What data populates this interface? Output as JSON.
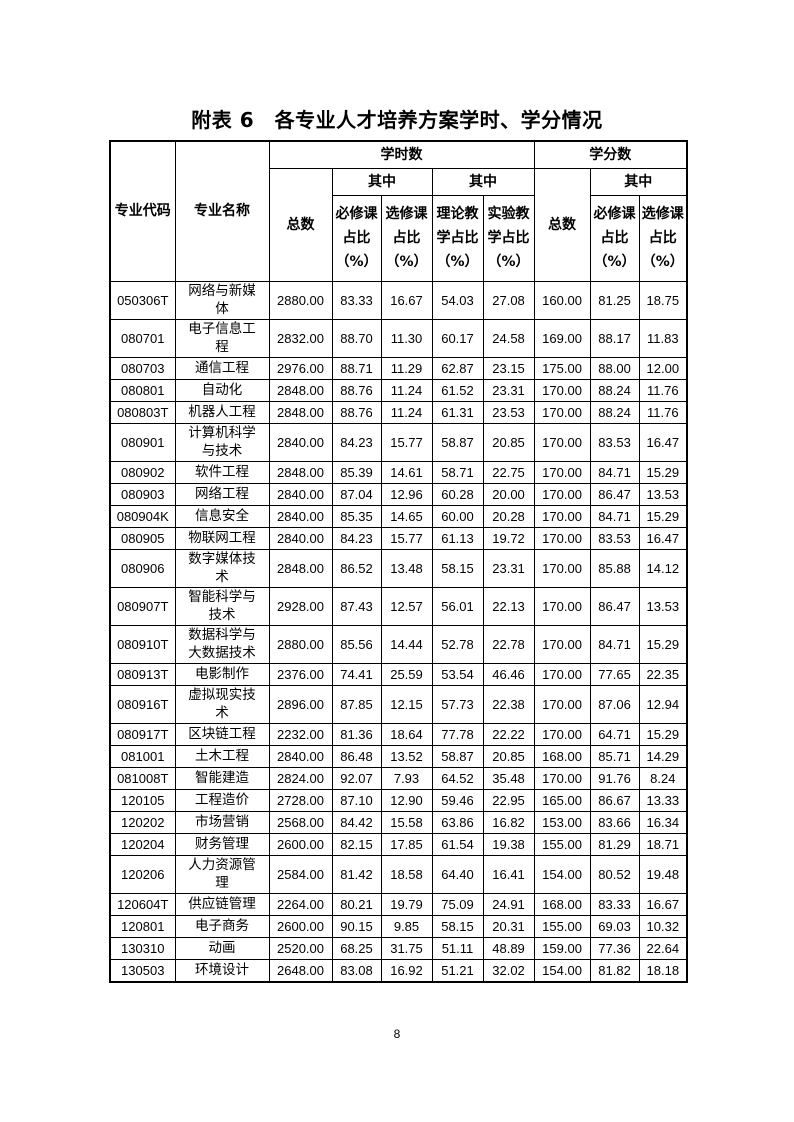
{
  "title": "附表 6　各专业人才培养方案学时、学分情况",
  "page_number": "8",
  "table": {
    "headers": {
      "code": "专业代码",
      "name": "专业名称",
      "hours_group": "学时数",
      "credits_group": "学分数",
      "of_which": "其中",
      "total": "总数",
      "required_pct": "必修课占比（%）",
      "elective_pct": "选修课占比（%）",
      "theory_pct": "理论教学占比（%）",
      "experiment_pct": "实验教学占比（%）"
    },
    "rows": [
      {
        "code": "050306T",
        "name": "网络与新媒体",
        "h_total": "2880.00",
        "h_req": "83.33",
        "h_ele": "16.67",
        "h_theory": "54.03",
        "h_exp": "27.08",
        "c_total": "160.00",
        "c_req": "81.25",
        "c_ele": "18.75"
      },
      {
        "code": "080701",
        "name": "电子信息工程",
        "h_total": "2832.00",
        "h_req": "88.70",
        "h_ele": "11.30",
        "h_theory": "60.17",
        "h_exp": "24.58",
        "c_total": "169.00",
        "c_req": "88.17",
        "c_ele": "11.83"
      },
      {
        "code": "080703",
        "name": "通信工程",
        "h_total": "2976.00",
        "h_req": "88.71",
        "h_ele": "11.29",
        "h_theory": "62.87",
        "h_exp": "23.15",
        "c_total": "175.00",
        "c_req": "88.00",
        "c_ele": "12.00"
      },
      {
        "code": "080801",
        "name": "自动化",
        "h_total": "2848.00",
        "h_req": "88.76",
        "h_ele": "11.24",
        "h_theory": "61.52",
        "h_exp": "23.31",
        "c_total": "170.00",
        "c_req": "88.24",
        "c_ele": "11.76"
      },
      {
        "code": "080803T",
        "name": "机器人工程",
        "h_total": "2848.00",
        "h_req": "88.76",
        "h_ele": "11.24",
        "h_theory": "61.31",
        "h_exp": "23.53",
        "c_total": "170.00",
        "c_req": "88.24",
        "c_ele": "11.76"
      },
      {
        "code": "080901",
        "name": "计算机科学与技术",
        "h_total": "2840.00",
        "h_req": "84.23",
        "h_ele": "15.77",
        "h_theory": "58.87",
        "h_exp": "20.85",
        "c_total": "170.00",
        "c_req": "83.53",
        "c_ele": "16.47"
      },
      {
        "code": "080902",
        "name": "软件工程",
        "h_total": "2848.00",
        "h_req": "85.39",
        "h_ele": "14.61",
        "h_theory": "58.71",
        "h_exp": "22.75",
        "c_total": "170.00",
        "c_req": "84.71",
        "c_ele": "15.29"
      },
      {
        "code": "080903",
        "name": "网络工程",
        "h_total": "2840.00",
        "h_req": "87.04",
        "h_ele": "12.96",
        "h_theory": "60.28",
        "h_exp": "20.00",
        "c_total": "170.00",
        "c_req": "86.47",
        "c_ele": "13.53"
      },
      {
        "code": "080904K",
        "name": "信息安全",
        "h_total": "2840.00",
        "h_req": "85.35",
        "h_ele": "14.65",
        "h_theory": "60.00",
        "h_exp": "20.28",
        "c_total": "170.00",
        "c_req": "84.71",
        "c_ele": "15.29"
      },
      {
        "code": "080905",
        "name": "物联网工程",
        "h_total": "2840.00",
        "h_req": "84.23",
        "h_ele": "15.77",
        "h_theory": "61.13",
        "h_exp": "19.72",
        "c_total": "170.00",
        "c_req": "83.53",
        "c_ele": "16.47"
      },
      {
        "code": "080906",
        "name": "数字媒体技术",
        "h_total": "2848.00",
        "h_req": "86.52",
        "h_ele": "13.48",
        "h_theory": "58.15",
        "h_exp": "23.31",
        "c_total": "170.00",
        "c_req": "85.88",
        "c_ele": "14.12"
      },
      {
        "code": "080907T",
        "name": "智能科学与技术",
        "h_total": "2928.00",
        "h_req": "87.43",
        "h_ele": "12.57",
        "h_theory": "56.01",
        "h_exp": "22.13",
        "c_total": "170.00",
        "c_req": "86.47",
        "c_ele": "13.53"
      },
      {
        "code": "080910T",
        "name": "数据科学与大数据技术",
        "h_total": "2880.00",
        "h_req": "85.56",
        "h_ele": "14.44",
        "h_theory": "52.78",
        "h_exp": "22.78",
        "c_total": "170.00",
        "c_req": "84.71",
        "c_ele": "15.29"
      },
      {
        "code": "080913T",
        "name": "电影制作",
        "h_total": "2376.00",
        "h_req": "74.41",
        "h_ele": "25.59",
        "h_theory": "53.54",
        "h_exp": "46.46",
        "c_total": "170.00",
        "c_req": "77.65",
        "c_ele": "22.35"
      },
      {
        "code": "080916T",
        "name": "虚拟现实技术",
        "h_total": "2896.00",
        "h_req": "87.85",
        "h_ele": "12.15",
        "h_theory": "57.73",
        "h_exp": "22.38",
        "c_total": "170.00",
        "c_req": "87.06",
        "c_ele": "12.94"
      },
      {
        "code": "080917T",
        "name": "区块链工程",
        "h_total": "2232.00",
        "h_req": "81.36",
        "h_ele": "18.64",
        "h_theory": "77.78",
        "h_exp": "22.22",
        "c_total": "170.00",
        "c_req": "64.71",
        "c_ele": "15.29"
      },
      {
        "code": "081001",
        "name": "土木工程",
        "h_total": "2840.00",
        "h_req": "86.48",
        "h_ele": "13.52",
        "h_theory": "58.87",
        "h_exp": "20.85",
        "c_total": "168.00",
        "c_req": "85.71",
        "c_ele": "14.29"
      },
      {
        "code": "081008T",
        "name": "智能建造",
        "h_total": "2824.00",
        "h_req": "92.07",
        "h_ele": "7.93",
        "h_theory": "64.52",
        "h_exp": "35.48",
        "c_total": "170.00",
        "c_req": "91.76",
        "c_ele": "8.24"
      },
      {
        "code": "120105",
        "name": "工程造价",
        "h_total": "2728.00",
        "h_req": "87.10",
        "h_ele": "12.90",
        "h_theory": "59.46",
        "h_exp": "22.95",
        "c_total": "165.00",
        "c_req": "86.67",
        "c_ele": "13.33"
      },
      {
        "code": "120202",
        "name": "市场营销",
        "h_total": "2568.00",
        "h_req": "84.42",
        "h_ele": "15.58",
        "h_theory": "63.86",
        "h_exp": "16.82",
        "c_total": "153.00",
        "c_req": "83.66",
        "c_ele": "16.34"
      },
      {
        "code": "120204",
        "name": "财务管理",
        "h_total": "2600.00",
        "h_req": "82.15",
        "h_ele": "17.85",
        "h_theory": "61.54",
        "h_exp": "19.38",
        "c_total": "155.00",
        "c_req": "81.29",
        "c_ele": "18.71"
      },
      {
        "code": "120206",
        "name": "人力资源管理",
        "h_total": "2584.00",
        "h_req": "81.42",
        "h_ele": "18.58",
        "h_theory": "64.40",
        "h_exp": "16.41",
        "c_total": "154.00",
        "c_req": "80.52",
        "c_ele": "19.48"
      },
      {
        "code": "120604T",
        "name": "供应链管理",
        "h_total": "2264.00",
        "h_req": "80.21",
        "h_ele": "19.79",
        "h_theory": "75.09",
        "h_exp": "24.91",
        "c_total": "168.00",
        "c_req": "83.33",
        "c_ele": "16.67"
      },
      {
        "code": "120801",
        "name": "电子商务",
        "h_total": "2600.00",
        "h_req": "90.15",
        "h_ele": "9.85",
        "h_theory": "58.15",
        "h_exp": "20.31",
        "c_total": "155.00",
        "c_req": "69.03",
        "c_ele": "10.32"
      },
      {
        "code": "130310",
        "name": "动画",
        "h_total": "2520.00",
        "h_req": "68.25",
        "h_ele": "31.75",
        "h_theory": "51.11",
        "h_exp": "48.89",
        "c_total": "159.00",
        "c_req": "77.36",
        "c_ele": "22.64"
      },
      {
        "code": "130503",
        "name": "环境设计",
        "h_total": "2648.00",
        "h_req": "83.08",
        "h_ele": "16.92",
        "h_theory": "51.21",
        "h_exp": "32.02",
        "c_total": "154.00",
        "c_req": "81.82",
        "c_ele": "18.18"
      }
    ]
  }
}
